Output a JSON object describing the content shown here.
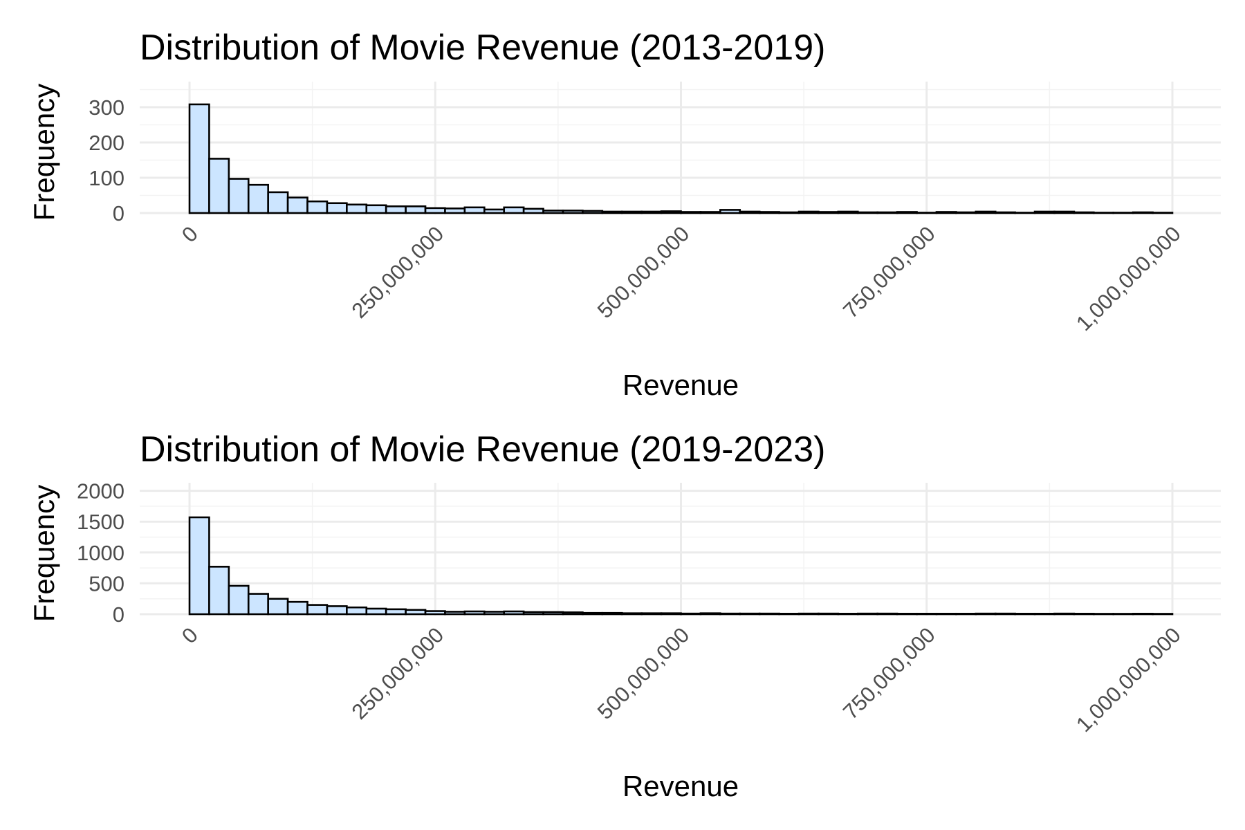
{
  "colors": {
    "bar_fill": "#cce5ff",
    "bar_stroke": "#000000",
    "grid_major": "#ebebeb",
    "grid_minor": "#f3f3f3",
    "tick_text": "#4d4d4d"
  },
  "chart_data": [
    {
      "type": "bar",
      "title": "Distribution of Movie Revenue (2013-2019)",
      "xlabel": "Revenue",
      "ylabel": "Frequency",
      "xlim": [
        0,
        1000000000
      ],
      "ylim": [
        0,
        350
      ],
      "grid": true,
      "x_ticks": [
        0,
        250000000,
        500000000,
        750000000,
        1000000000
      ],
      "x_tick_labels": [
        "0",
        "250,000,000",
        "500,000,000",
        "750,000,000",
        "1,000,000,000"
      ],
      "y_ticks": [
        0,
        100,
        200,
        300
      ],
      "y_tick_labels": [
        "0",
        "100",
        "200",
        "300"
      ],
      "bin_width": 20000000,
      "bin_starts": [
        0,
        20000000,
        40000000,
        60000000,
        80000000,
        100000000,
        120000000,
        140000000,
        160000000,
        180000000,
        200000000,
        220000000,
        240000000,
        260000000,
        280000000,
        300000000,
        320000000,
        340000000,
        360000000,
        380000000,
        400000000,
        420000000,
        440000000,
        460000000,
        480000000,
        500000000,
        520000000,
        540000000,
        560000000,
        580000000,
        600000000,
        620000000,
        640000000,
        660000000,
        680000000,
        700000000,
        720000000,
        740000000,
        760000000,
        780000000,
        800000000,
        820000000,
        840000000,
        860000000,
        880000000,
        900000000,
        920000000,
        940000000,
        960000000,
        980000000
      ],
      "values": [
        308,
        154,
        97,
        80,
        59,
        44,
        33,
        28,
        24,
        22,
        19,
        19,
        14,
        13,
        16,
        10,
        16,
        12,
        7,
        7,
        6,
        4,
        4,
        4,
        5,
        3,
        3,
        9,
        4,
        3,
        2,
        4,
        3,
        4,
        2,
        2,
        3,
        1,
        3,
        2,
        4,
        2,
        1,
        4,
        4,
        2,
        1,
        1,
        2,
        1
      ]
    },
    {
      "type": "bar",
      "title": "Distribution of Movie Revenue (2019-2023)",
      "xlabel": "Revenue",
      "ylabel": "Frequency",
      "xlim": [
        0,
        1000000000
      ],
      "ylim": [
        0,
        2100
      ],
      "grid": true,
      "x_ticks": [
        0,
        250000000,
        500000000,
        750000000,
        1000000000
      ],
      "x_tick_labels": [
        "0",
        "250,000,000",
        "500,000,000",
        "750,000,000",
        "1,000,000,000"
      ],
      "y_ticks": [
        0,
        500,
        1000,
        1500,
        2000
      ],
      "y_tick_labels": [
        "0",
        "500",
        "1000",
        "1500",
        "2000"
      ],
      "bin_width": 20000000,
      "bin_starts": [
        0,
        20000000,
        40000000,
        60000000,
        80000000,
        100000000,
        120000000,
        140000000,
        160000000,
        180000000,
        200000000,
        220000000,
        240000000,
        260000000,
        280000000,
        300000000,
        320000000,
        340000000,
        360000000,
        380000000,
        400000000,
        420000000,
        440000000,
        460000000,
        480000000,
        500000000,
        520000000,
        540000000,
        560000000,
        580000000,
        600000000,
        620000000,
        640000000,
        660000000,
        680000000,
        700000000,
        720000000,
        740000000,
        760000000,
        780000000,
        800000000,
        820000000,
        840000000,
        860000000,
        880000000,
        900000000,
        920000000,
        940000000,
        960000000,
        980000000
      ],
      "values": [
        1570,
        770,
        460,
        330,
        250,
        200,
        150,
        130,
        110,
        90,
        80,
        70,
        50,
        40,
        45,
        40,
        45,
        35,
        35,
        30,
        20,
        20,
        15,
        15,
        15,
        10,
        15,
        10,
        10,
        10,
        8,
        10,
        10,
        8,
        10,
        10,
        8,
        8,
        8,
        8,
        10,
        10,
        8,
        8,
        10,
        8,
        6,
        6,
        8,
        6
      ]
    }
  ]
}
